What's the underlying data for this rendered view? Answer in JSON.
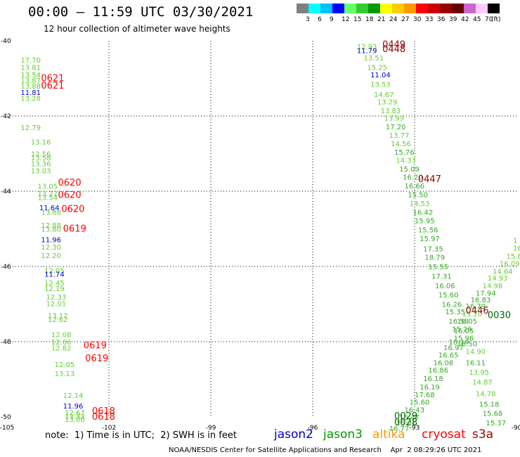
{
  "header": {
    "title": "00:00 – 11:59 UTC 03/30/2021",
    "subtitle": "12 hour collection of altimeter wave heights"
  },
  "colorbar": {
    "unit_label": "(ft)",
    "bins": [
      {
        "color": "#808080",
        "label": "3"
      },
      {
        "color": "#00ffff",
        "label": "6"
      },
      {
        "color": "#00bfff",
        "label": "9"
      },
      {
        "color": "#0000ff",
        "label": "12"
      },
      {
        "color": "#66ff66",
        "label": "15"
      },
      {
        "color": "#33cc33",
        "label": "18"
      },
      {
        "color": "#009900",
        "label": "21"
      },
      {
        "color": "#ffff00",
        "label": "24"
      },
      {
        "color": "#ffcc00",
        "label": "27"
      },
      {
        "color": "#ff9900",
        "label": "30"
      },
      {
        "color": "#ff0000",
        "label": "33"
      },
      {
        "color": "#cc0000",
        "label": "36"
      },
      {
        "color": "#990000",
        "label": "39"
      },
      {
        "color": "#660000",
        "label": "42"
      },
      {
        "color": "#cc66cc",
        "label": "45"
      },
      {
        "color": "#ffccff",
        "label": "70"
      },
      {
        "color": "#000000",
        "label": ""
      }
    ]
  },
  "map": {
    "lon_range": [
      -105,
      -90
    ],
    "lat_range": [
      -50,
      -40
    ],
    "lon_ticks": [
      "-105",
      "-102",
      "-99",
      "-96",
      "-93",
      "-90"
    ],
    "lat_ticks": [
      "-40",
      "-42",
      "-44",
      "-46",
      "-48",
      "-50"
    ],
    "grid_lons": [
      -102,
      -99,
      -96,
      -93
    ],
    "grid_lats": [
      -42,
      -44,
      -46,
      -48
    ]
  },
  "legend": {
    "note": "note:  1) Time is in UTC;  2) SWH is in feet",
    "missions": [
      {
        "name": "jason2",
        "color": "#0000cc"
      },
      {
        "name": "jason3",
        "color": "#009900"
      },
      {
        "name": "altika",
        "color": "#ff9900"
      },
      {
        "name": "cryosat",
        "color": "#ff0000"
      },
      {
        "name": "s3a",
        "color": "#990000"
      }
    ]
  },
  "credit": "NOAA/NESDIS Center for Satellite Applications and Research    Apr  2 08:29:26 UTC 2021",
  "observations": [
    {
      "lon": -104.6,
      "lat": -40.5,
      "text": "17.70",
      "color": "#66cc33"
    },
    {
      "lon": -104.6,
      "lat": -40.7,
      "text": "13.81",
      "color": "#66cc33"
    },
    {
      "lon": -104.6,
      "lat": -40.9,
      "text": "13.54",
      "color": "#66cc33"
    },
    {
      "lon": -104.6,
      "lat": -41.05,
      "text": "13.87",
      "color": "#66cc33"
    },
    {
      "lon": -104.6,
      "lat": -41.2,
      "text": "13.88",
      "color": "#66cc33"
    },
    {
      "lon": -104.6,
      "lat": -41.36,
      "text": "11.81",
      "color": "#0000cc"
    },
    {
      "lon": -104.6,
      "lat": -41.52,
      "text": "13.28",
      "color": "#66cc33"
    },
    {
      "lon": -104.6,
      "lat": -42.3,
      "text": "12.79",
      "color": "#66cc33"
    },
    {
      "lon": -104.3,
      "lat": -42.68,
      "text": "13.16",
      "color": "#66cc33"
    },
    {
      "lon": -104.3,
      "lat": -43.0,
      "text": "12.56",
      "color": "#66cc33"
    },
    {
      "lon": -104.3,
      "lat": -43.1,
      "text": "13.58",
      "color": "#66cc33"
    },
    {
      "lon": -104.3,
      "lat": -43.26,
      "text": "13.36",
      "color": "#66cc33"
    },
    {
      "lon": -104.3,
      "lat": -43.45,
      "text": "13.03",
      "color": "#66cc33"
    },
    {
      "lon": -104.1,
      "lat": -43.86,
      "text": "13.05",
      "color": "#66cc33"
    },
    {
      "lon": -104.1,
      "lat": -44.06,
      "text": "13.27",
      "color": "#66cc33"
    },
    {
      "lon": -104.1,
      "lat": -44.16,
      "text": "13.54",
      "color": "#66cc33"
    },
    {
      "lon": -104.05,
      "lat": -44.43,
      "text": "11.64",
      "color": "#0000cc"
    },
    {
      "lon": -104.0,
      "lat": -44.55,
      "text": "13.88",
      "color": "#66cc33"
    },
    {
      "lon": -104.0,
      "lat": -44.9,
      "text": "12.88",
      "color": "#66cc33"
    },
    {
      "lon": -104.0,
      "lat": -45.0,
      "text": "13.80",
      "color": "#66cc33"
    },
    {
      "lon": -104.0,
      "lat": -45.28,
      "text": "11.96",
      "color": "#0000cc"
    },
    {
      "lon": -104.0,
      "lat": -45.48,
      "text": "12.30",
      "color": "#66cc33"
    },
    {
      "lon": -104.0,
      "lat": -45.7,
      "text": "12.20",
      "color": "#66cc33"
    },
    {
      "lon": -103.9,
      "lat": -46.1,
      "text": "12.05",
      "color": "#66cc33"
    },
    {
      "lon": -103.9,
      "lat": -46.2,
      "text": "11.74",
      "color": "#0000cc"
    },
    {
      "lon": -103.9,
      "lat": -46.43,
      "text": "12.45",
      "color": "#66cc33"
    },
    {
      "lon": -103.9,
      "lat": -46.58,
      "text": "12.19",
      "color": "#66cc33"
    },
    {
      "lon": -103.85,
      "lat": -46.8,
      "text": "12.33",
      "color": "#66cc33"
    },
    {
      "lon": -103.85,
      "lat": -46.98,
      "text": "12.01",
      "color": "#66cc33"
    },
    {
      "lon": -103.8,
      "lat": -47.3,
      "text": "13.12",
      "color": "#66cc33"
    },
    {
      "lon": -103.8,
      "lat": -47.4,
      "text": "12.62",
      "color": "#66cc33"
    },
    {
      "lon": -103.7,
      "lat": -47.8,
      "text": "12.08",
      "color": "#66cc33"
    },
    {
      "lon": -103.7,
      "lat": -48.0,
      "text": "12.66",
      "color": "#66cc33"
    },
    {
      "lon": -103.7,
      "lat": -48.16,
      "text": "12.82",
      "color": "#66cc33"
    },
    {
      "lon": -103.6,
      "lat": -48.6,
      "text": "12.05",
      "color": "#66cc33"
    },
    {
      "lon": -103.6,
      "lat": -48.84,
      "text": "13.13",
      "color": "#66cc33"
    },
    {
      "lon": -103.35,
      "lat": -49.42,
      "text": "12.14",
      "color": "#66cc33"
    },
    {
      "lon": -103.35,
      "lat": -49.7,
      "text": "11.96",
      "color": "#0000cc"
    },
    {
      "lon": -103.3,
      "lat": -49.88,
      "text": "12.67",
      "color": "#66cc33"
    },
    {
      "lon": -103.3,
      "lat": -49.98,
      "text": "13.33",
      "color": "#66cc33"
    },
    {
      "lon": -103.3,
      "lat": -50.06,
      "text": "13.00",
      "color": "#66cc33"
    },
    {
      "lon": -104.0,
      "lat": -41.0,
      "text": "0621",
      "color": "#ff0000",
      "big": true
    },
    {
      "lon": -104.0,
      "lat": -41.2,
      "text": "0621",
      "color": "#ff0000",
      "big": true
    },
    {
      "lon": -103.5,
      "lat": -43.78,
      "text": "0620",
      "color": "#ff0000",
      "big": true
    },
    {
      "lon": -103.5,
      "lat": -44.1,
      "text": "0620",
      "color": "#ff0000",
      "big": true
    },
    {
      "lon": -103.4,
      "lat": -44.48,
      "text": "0620",
      "color": "#ff0000",
      "big": true
    },
    {
      "lon": -103.35,
      "lat": -45.0,
      "text": "0619",
      "color": "#ff0000",
      "big": true
    },
    {
      "lon": -102.75,
      "lat": -48.1,
      "text": "0619",
      "color": "#ff0000",
      "big": true
    },
    {
      "lon": -102.7,
      "lat": -48.45,
      "text": "0619",
      "color": "#ff0000",
      "big": true
    },
    {
      "lon": -102.5,
      "lat": -49.85,
      "text": "0618",
      "color": "#ff0000",
      "big": true
    },
    {
      "lon": -102.5,
      "lat": -50.0,
      "text": "0618",
      "color": "#ff0000",
      "big": true
    },
    {
      "lon": -94.7,
      "lat": -40.15,
      "text": "12.93",
      "color": "#66cc33"
    },
    {
      "lon": -94.7,
      "lat": -40.25,
      "text": "11.79",
      "color": "#0000cc"
    },
    {
      "lon": -94.5,
      "lat": -40.45,
      "text": "13.51",
      "color": "#66cc33"
    },
    {
      "lon": -94.4,
      "lat": -40.7,
      "text": "15.25",
      "color": "#66cc33"
    },
    {
      "lon": -94.3,
      "lat": -40.9,
      "text": "11.04",
      "color": "#0000cc"
    },
    {
      "lon": -94.3,
      "lat": -41.15,
      "text": "13.53",
      "color": "#66cc33"
    },
    {
      "lon": -94.2,
      "lat": -41.42,
      "text": "14.67",
      "color": "#66cc33"
    },
    {
      "lon": -94.1,
      "lat": -41.62,
      "text": "13.29",
      "color": "#66cc33"
    },
    {
      "lon": -94.0,
      "lat": -41.85,
      "text": "13.83",
      "color": "#66cc33"
    },
    {
      "lon": -93.9,
      "lat": -42.05,
      "text": "13.99",
      "color": "#66cc33"
    },
    {
      "lon": -93.85,
      "lat": -42.28,
      "text": "17.20",
      "color": "#33aa22"
    },
    {
      "lon": -93.75,
      "lat": -42.5,
      "text": "13.77",
      "color": "#66cc33"
    },
    {
      "lon": -93.7,
      "lat": -42.73,
      "text": "14.56",
      "color": "#66cc33"
    },
    {
      "lon": -93.6,
      "lat": -42.95,
      "text": "15.76",
      "color": "#33aa22"
    },
    {
      "lon": -93.55,
      "lat": -43.17,
      "text": "14.33",
      "color": "#66cc33"
    },
    {
      "lon": -93.45,
      "lat": -43.4,
      "text": "15.09",
      "color": "#33aa22"
    },
    {
      "lon": -93.35,
      "lat": -43.62,
      "text": "16.20",
      "color": "#33aa22"
    },
    {
      "lon": -93.3,
      "lat": -43.85,
      "text": "16.66",
      "color": "#33aa22"
    },
    {
      "lon": -93.2,
      "lat": -44.08,
      "text": "15.50",
      "color": "#33aa22"
    },
    {
      "lon": -93.15,
      "lat": -44.32,
      "text": "14.53",
      "color": "#66cc33"
    },
    {
      "lon": -93.05,
      "lat": -44.55,
      "text": "16.42",
      "color": "#33aa22"
    },
    {
      "lon": -93.0,
      "lat": -44.78,
      "text": "15.95",
      "color": "#33aa22"
    },
    {
      "lon": -92.9,
      "lat": -45.02,
      "text": "15.56",
      "color": "#33aa22"
    },
    {
      "lon": -92.85,
      "lat": -45.25,
      "text": "15.97",
      "color": "#33aa22"
    },
    {
      "lon": -92.75,
      "lat": -45.52,
      "text": "17.35",
      "color": "#33aa22"
    },
    {
      "lon": -92.7,
      "lat": -45.75,
      "text": "18.79",
      "color": "#33aa22"
    },
    {
      "lon": -92.6,
      "lat": -46.0,
      "text": "15.55",
      "color": "#33aa22"
    },
    {
      "lon": -92.5,
      "lat": -46.25,
      "text": "17.31",
      "color": "#33aa22"
    },
    {
      "lon": -92.4,
      "lat": -46.5,
      "text": "16.06",
      "color": "#33aa22"
    },
    {
      "lon": -92.3,
      "lat": -46.75,
      "text": "15.60",
      "color": "#33aa22"
    },
    {
      "lon": -92.2,
      "lat": -47.0,
      "text": "16.26",
      "color": "#33aa22"
    },
    {
      "lon": -92.1,
      "lat": -47.2,
      "text": "15.35",
      "color": "#33aa22"
    },
    {
      "lon": -92.0,
      "lat": -47.45,
      "text": "16.58",
      "color": "#33aa22"
    },
    {
      "lon": -91.9,
      "lat": -47.65,
      "text": "15.26",
      "color": "#33aa22"
    },
    {
      "lon": -91.85,
      "lat": -47.9,
      "text": "15.96",
      "color": "#33aa22"
    },
    {
      "lon": -92.0,
      "lat": -48.0,
      "text": "16.14",
      "color": "#33aa22"
    },
    {
      "lon": -92.15,
      "lat": -48.15,
      "text": "16.97",
      "color": "#33aa22"
    },
    {
      "lon": -92.3,
      "lat": -48.35,
      "text": "16.65",
      "color": "#33aa22"
    },
    {
      "lon": -92.45,
      "lat": -48.55,
      "text": "16.08",
      "color": "#33aa22"
    },
    {
      "lon": -92.6,
      "lat": -48.75,
      "text": "16.86",
      "color": "#33aa22"
    },
    {
      "lon": -92.75,
      "lat": -48.97,
      "text": "16.18",
      "color": "#33aa22"
    },
    {
      "lon": -92.85,
      "lat": -49.2,
      "text": "16.19",
      "color": "#33aa22"
    },
    {
      "lon": -93.0,
      "lat": -49.4,
      "text": "17.68",
      "color": "#33aa22"
    },
    {
      "lon": -93.15,
      "lat": -49.6,
      "text": "15.60",
      "color": "#33aa22"
    },
    {
      "lon": -93.3,
      "lat": -49.8,
      "text": "16.43",
      "color": "#33aa22"
    },
    {
      "lon": -93.45,
      "lat": -50.0,
      "text": "15.47",
      "color": "#33aa22"
    },
    {
      "lon": -93.55,
      "lat": -50.15,
      "text": "16.01",
      "color": "#33aa22"
    },
    {
      "lon": -93.75,
      "lat": -50.3,
      "text": "16.77",
      "color": "#33aa22"
    },
    {
      "lon": -90.1,
      "lat": -45.3,
      "text": "1",
      "color": "#66cc33"
    },
    {
      "lon": -90.1,
      "lat": -45.5,
      "text": "16.",
      "color": "#66cc33"
    },
    {
      "lon": -90.3,
      "lat": -45.72,
      "text": "15.6",
      "color": "#66cc33"
    },
    {
      "lon": -90.5,
      "lat": -45.92,
      "text": "16.09",
      "color": "#66cc33"
    },
    {
      "lon": -90.7,
      "lat": -46.12,
      "text": "14.64",
      "color": "#66cc33"
    },
    {
      "lon": -90.85,
      "lat": -46.3,
      "text": "14.93",
      "color": "#66cc33"
    },
    {
      "lon": -91.0,
      "lat": -46.5,
      "text": "14.98",
      "color": "#66cc33"
    },
    {
      "lon": -91.2,
      "lat": -46.7,
      "text": "17.94",
      "color": "#33aa22"
    },
    {
      "lon": -91.35,
      "lat": -46.88,
      "text": "16.83",
      "color": "#33aa22"
    },
    {
      "lon": -91.5,
      "lat": -47.05,
      "text": "16.79",
      "color": "#33aa22"
    },
    {
      "lon": -91.6,
      "lat": -47.25,
      "text": "15.20",
      "color": "#66cc33"
    },
    {
      "lon": -91.75,
      "lat": -47.45,
      "text": "16.05",
      "color": "#33aa22"
    },
    {
      "lon": -91.85,
      "lat": -47.7,
      "text": "16.05",
      "color": "#33aa22"
    },
    {
      "lon": -91.75,
      "lat": -48.05,
      "text": "16.50",
      "color": "#33aa22"
    },
    {
      "lon": -91.5,
      "lat": -48.25,
      "text": "14.90",
      "color": "#66cc33"
    },
    {
      "lon": -91.5,
      "lat": -48.55,
      "text": "16.11",
      "color": "#33aa22"
    },
    {
      "lon": -91.4,
      "lat": -48.8,
      "text": "13.95",
      "color": "#66cc33"
    },
    {
      "lon": -91.3,
      "lat": -49.07,
      "text": "14.87",
      "color": "#66cc33"
    },
    {
      "lon": -91.2,
      "lat": -49.37,
      "text": "14.78",
      "color": "#66cc33"
    },
    {
      "lon": -91.1,
      "lat": -49.65,
      "text": "15.18",
      "color": "#33aa22"
    },
    {
      "lon": -91.0,
      "lat": -49.9,
      "text": "15.68",
      "color": "#33aa22"
    },
    {
      "lon": -90.9,
      "lat": -50.15,
      "text": "15.37",
      "color": "#33aa22"
    },
    {
      "lon": -93.95,
      "lat": -40.1,
      "text": "0449",
      "color": "#990000",
      "big": true
    },
    {
      "lon": -93.95,
      "lat": -40.22,
      "text": "0448",
      "color": "#990000",
      "big": true
    },
    {
      "lon": -92.9,
      "lat": -43.68,
      "text": "0447",
      "color": "#990000",
      "big": true
    },
    {
      "lon": -91.5,
      "lat": -47.18,
      "text": "0446",
      "color": "#990000",
      "big": true
    },
    {
      "lon": -90.85,
      "lat": -47.3,
      "text": "0030",
      "color": "#006600",
      "big": true
    },
    {
      "lon": -93.6,
      "lat": -49.98,
      "text": "0029",
      "color": "#006600",
      "big": true
    },
    {
      "lon": -93.6,
      "lat": -50.15,
      "text": "0028",
      "color": "#006600",
      "big": true
    }
  ]
}
